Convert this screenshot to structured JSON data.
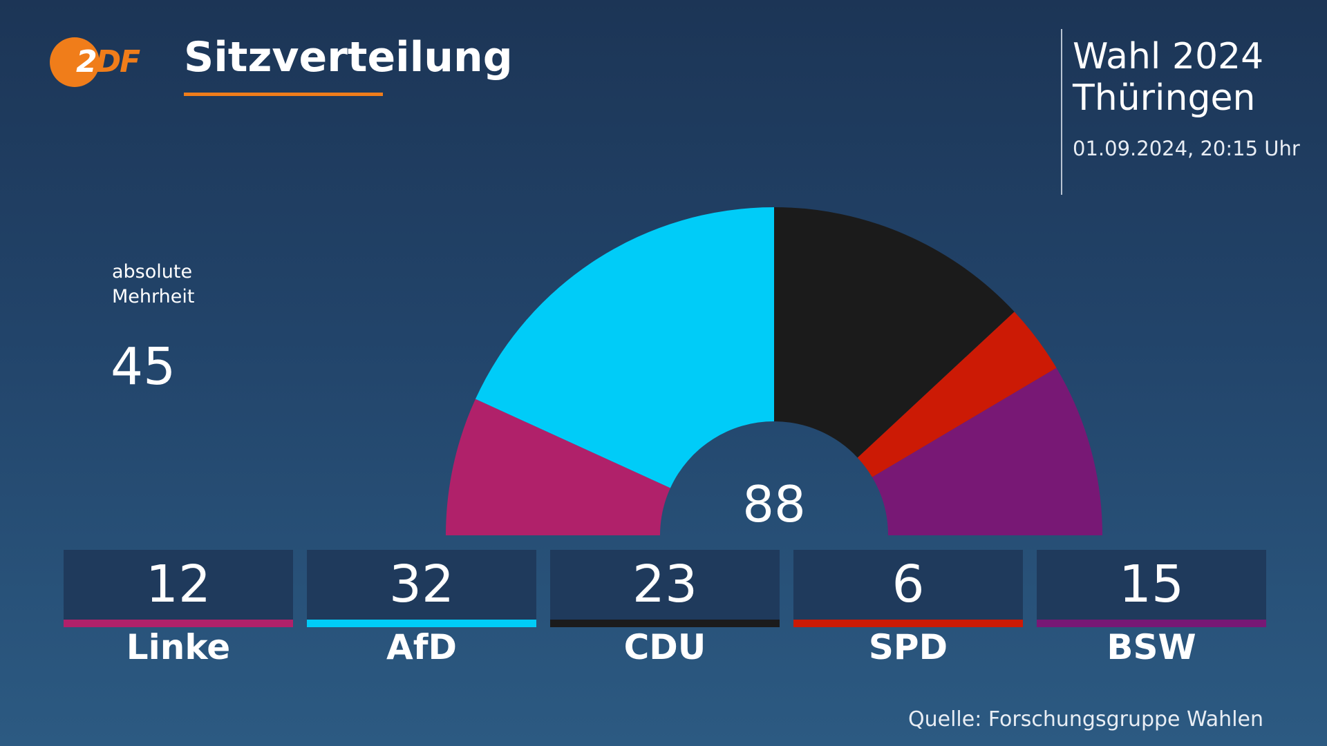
{
  "header": {
    "title": "Sitzverteilung",
    "logo": {
      "text": "ZDF",
      "icon": "zdf-logo"
    }
  },
  "election": {
    "line1": "Wahl 2024",
    "line2": "Thüringen",
    "timestamp": "01.09.2024, 20:15 Uhr"
  },
  "majority": {
    "label_line1": "absolute",
    "label_line2": "Mehrheit",
    "value": "45"
  },
  "source": "Quelle: Forschungsgruppe Wahlen",
  "chart_data": {
    "type": "pie",
    "variant": "semicircle-parliament",
    "title": "Sitzverteilung",
    "total": 88,
    "total_label": "88",
    "categories": [
      "Linke",
      "AfD",
      "CDU",
      "SPD",
      "BSW"
    ],
    "values": [
      12,
      32,
      23,
      6,
      15
    ],
    "value_labels": [
      "12",
      "32",
      "23",
      "6",
      "15"
    ],
    "colors": [
      "#b0216a",
      "#00ccf8",
      "#1b1b1b",
      "#cc1a05",
      "#781875"
    ]
  }
}
